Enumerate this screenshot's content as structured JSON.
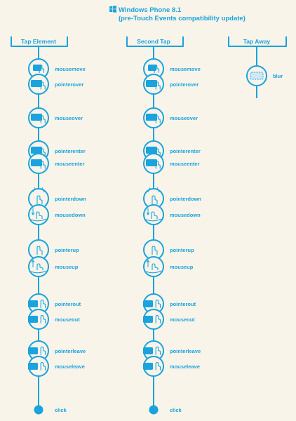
{
  "title": {
    "line1": "Windows Phone 8.1",
    "line2": "(pre-Touch Events compatibility update)",
    "logo_icon": "windows-logo-icon"
  },
  "accent_color": "#1aa3dd",
  "background_color": "#f8f4ea",
  "columns": [
    {
      "id": "tap-element",
      "header": "Tap Element",
      "events": [
        {
          "label": "mousemove",
          "icon": "finger-hover-box-icon"
        },
        {
          "label": "pointerover",
          "icon": "box-finger-icon"
        },
        {
          "label": "mouseover",
          "icon": "box-finger-icon"
        },
        {
          "label": "pointerenter",
          "icon": "box-finger-icon"
        },
        {
          "label": "mouseenter",
          "icon": "box-finger-icon"
        },
        {
          "label": "pointerdown",
          "icon": "finger-tap-burst-icon"
        },
        {
          "label": "mousedown",
          "icon": "finger-press-icon"
        },
        {
          "label": "pointerup",
          "icon": "finger-up-icon"
        },
        {
          "label": "mouseup",
          "icon": "finger-release-icon"
        },
        {
          "label": "pointerout",
          "icon": "box-finger-away-icon"
        },
        {
          "label": "mouseout",
          "icon": "box-finger-away-icon"
        },
        {
          "label": "pointerleave",
          "icon": "box-finger-away-icon"
        },
        {
          "label": "mouseleave",
          "icon": "box-finger-away-icon"
        },
        {
          "label": "click",
          "icon": "dot-icon"
        }
      ]
    },
    {
      "id": "second-tap",
      "header": "Second Tap",
      "events": [
        {
          "label": "mousemove",
          "icon": "finger-hover-box-icon"
        },
        {
          "label": "pointerover",
          "icon": "box-finger-icon"
        },
        {
          "label": "mouseover",
          "icon": "box-finger-icon"
        },
        {
          "label": "pointerenter",
          "icon": "box-finger-icon"
        },
        {
          "label": "mouseenter",
          "icon": "box-finger-icon"
        },
        {
          "label": "pointerdown",
          "icon": "finger-tap-burst-icon"
        },
        {
          "label": "mousedown",
          "icon": "finger-press-icon"
        },
        {
          "label": "pointerup",
          "icon": "finger-up-icon"
        },
        {
          "label": "mouseup",
          "icon": "finger-release-icon"
        },
        {
          "label": "pointerout",
          "icon": "box-finger-away-icon"
        },
        {
          "label": "mouseout",
          "icon": "box-finger-away-icon"
        },
        {
          "label": "pointerleave",
          "icon": "box-finger-away-icon"
        },
        {
          "label": "mouseleave",
          "icon": "box-finger-away-icon"
        },
        {
          "label": "click",
          "icon": "dot-icon"
        }
      ]
    },
    {
      "id": "tap-away",
      "header": "Tap Away",
      "events": [
        {
          "label": "blur",
          "icon": "dashed-box-icon"
        }
      ]
    }
  ]
}
